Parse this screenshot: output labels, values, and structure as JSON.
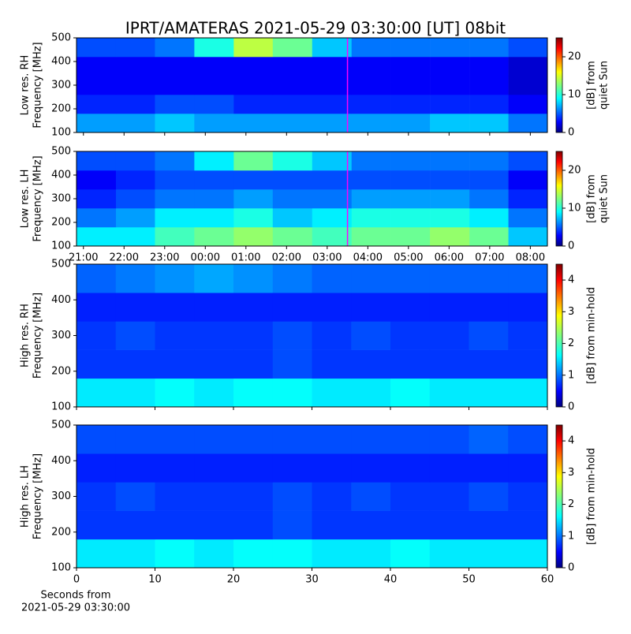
{
  "chart_data": [
    {
      "type": "heatmap",
      "title": "IPRT/AMATERAS 2021-05-29 03:30:00 [UT]   08bit",
      "ylabel": [
        "Low res. RH",
        "Frequency [MHz]"
      ],
      "ylim": [
        100,
        500
      ],
      "yticks": [
        100,
        200,
        300,
        400,
        500
      ],
      "xlim": [
        20.83,
        32.42
      ],
      "xticks": [
        {
          "value": 21,
          "label": "21:00"
        },
        {
          "value": 22,
          "label": "22:00"
        },
        {
          "value": 23,
          "label": "23:00"
        },
        {
          "value": 24,
          "label": "00:00"
        },
        {
          "value": 25,
          "label": "01:00"
        },
        {
          "value": 26,
          "label": "02:00"
        },
        {
          "value": 27,
          "label": "03:00"
        },
        {
          "value": 28,
          "label": "04:00"
        },
        {
          "value": 29,
          "label": "05:00"
        },
        {
          "value": 30,
          "label": "06:00"
        },
        {
          "value": 31,
          "label": "07:00"
        },
        {
          "value": 32,
          "label": "08:00"
        }
      ],
      "xtick_labels": false,
      "cursor_x": 27.5,
      "cursor_color": "#ff00ff",
      "x_bins": [
        20.83,
        21.8,
        22.76,
        23.73,
        24.7,
        25.66,
        26.63,
        27.6,
        28.56,
        29.53,
        30.5,
        31.46,
        32.42
      ],
      "y_bins": [
        100,
        180,
        260,
        340,
        420,
        500
      ],
      "z": [
        [
          7,
          7,
          8,
          7,
          7,
          7,
          7,
          7,
          7,
          8,
          8,
          6
        ],
        [
          4,
          4,
          5,
          5,
          4,
          4,
          4,
          4,
          4,
          4,
          4,
          3
        ],
        [
          3,
          3,
          3,
          3,
          3,
          3,
          3,
          3,
          3,
          3,
          3,
          2
        ],
        [
          3,
          3,
          3,
          3,
          3,
          3,
          3,
          3,
          3,
          3,
          3,
          2
        ],
        [
          5,
          5,
          6,
          10,
          14,
          12,
          8,
          6,
          6,
          6,
          6,
          5
        ]
      ],
      "colorbar": {
        "label": [
          "[dB] from",
          "quiet Sun"
        ],
        "lim": [
          0,
          25
        ],
        "ticks": [
          0,
          10,
          20
        ]
      }
    },
    {
      "type": "heatmap",
      "ylabel": [
        "Low res. LH",
        "Frequency [MHz]"
      ],
      "ylim": [
        100,
        500
      ],
      "yticks": [
        100,
        200,
        300,
        400,
        500
      ],
      "xlim": [
        20.83,
        32.42
      ],
      "xticks": [
        {
          "value": 21,
          "label": "21:00"
        },
        {
          "value": 22,
          "label": "22:00"
        },
        {
          "value": 23,
          "label": "23:00"
        },
        {
          "value": 24,
          "label": "00:00"
        },
        {
          "value": 25,
          "label": "01:00"
        },
        {
          "value": 26,
          "label": "02:00"
        },
        {
          "value": 27,
          "label": "03:00"
        },
        {
          "value": 28,
          "label": "04:00"
        },
        {
          "value": 29,
          "label": "05:00"
        },
        {
          "value": 30,
          "label": "06:00"
        },
        {
          "value": 31,
          "label": "07:00"
        },
        {
          "value": 32,
          "label": "08:00"
        }
      ],
      "xtick_labels": true,
      "cursor_x": 27.5,
      "cursor_color": "#ff00ff",
      "x_bins": [
        20.83,
        21.8,
        22.76,
        23.73,
        24.7,
        25.66,
        26.63,
        27.6,
        28.56,
        29.53,
        30.5,
        31.46,
        32.42
      ],
      "y_bins": [
        100,
        180,
        260,
        340,
        420,
        500
      ],
      "z": [
        [
          9,
          9,
          11,
          12,
          13,
          12,
          11,
          12,
          12,
          13,
          12,
          8
        ],
        [
          6,
          7,
          9,
          9,
          10,
          8,
          9,
          10,
          10,
          10,
          9,
          6
        ],
        [
          4,
          5,
          6,
          6,
          7,
          6,
          6,
          7,
          7,
          7,
          6,
          4
        ],
        [
          3,
          4,
          5,
          5,
          5,
          5,
          5,
          5,
          5,
          5,
          5,
          3
        ],
        [
          5,
          5,
          6,
          9,
          12,
          10,
          8,
          6,
          6,
          6,
          6,
          5
        ]
      ],
      "colorbar": {
        "label": [
          "[dB] from",
          "quiet Sun"
        ],
        "lim": [
          0,
          25
        ],
        "ticks": [
          0,
          10,
          20
        ]
      }
    },
    {
      "type": "heatmap",
      "ylabel": [
        "High res. RH",
        "Frequency [MHz]"
      ],
      "ylim": [
        100,
        500
      ],
      "yticks": [
        100,
        200,
        300,
        400,
        500
      ],
      "xlim": [
        0,
        60
      ],
      "xticks": [
        0,
        10,
        20,
        30,
        40,
        50,
        60
      ],
      "xtick_labels": false,
      "x_bins": [
        0,
        5,
        10,
        15,
        20,
        25,
        30,
        35,
        40,
        45,
        50,
        55,
        60
      ],
      "y_bins": [
        100,
        180,
        260,
        340,
        420,
        500
      ],
      "z": [
        [
          1.6,
          1.6,
          1.7,
          1.6,
          1.7,
          1.7,
          1.6,
          1.6,
          1.7,
          1.6,
          1.6,
          1.6
        ],
        [
          0.8,
          0.8,
          0.8,
          0.8,
          0.8,
          0.9,
          0.8,
          0.8,
          0.8,
          0.8,
          0.8,
          0.8
        ],
        [
          0.8,
          0.9,
          0.8,
          0.8,
          0.8,
          0.9,
          0.8,
          0.9,
          0.8,
          0.8,
          0.9,
          0.8
        ],
        [
          0.7,
          0.7,
          0.7,
          0.7,
          0.7,
          0.7,
          0.7,
          0.7,
          0.7,
          0.7,
          0.7,
          0.7
        ],
        [
          1.0,
          1.1,
          1.2,
          1.3,
          1.2,
          1.1,
          1.0,
          1.0,
          1.0,
          1.0,
          1.0,
          1.0
        ]
      ],
      "colorbar": {
        "label": [
          "[dB] from min-hold"
        ],
        "lim": [
          0,
          4.5
        ],
        "ticks": [
          0,
          1,
          2,
          3,
          4
        ]
      }
    },
    {
      "type": "heatmap",
      "ylabel": [
        "High res. LH",
        "Frequency [MHz]"
      ],
      "ylim": [
        100,
        500
      ],
      "yticks": [
        100,
        200,
        300,
        400,
        500
      ],
      "xlim": [
        0,
        60
      ],
      "xticks": [
        0,
        10,
        20,
        30,
        40,
        50,
        60
      ],
      "xtick_labels": true,
      "xlabel": [
        "Seconds from",
        "2021-05-29 03:30:00"
      ],
      "x_bins": [
        0,
        5,
        10,
        15,
        20,
        25,
        30,
        35,
        40,
        45,
        50,
        55,
        60
      ],
      "y_bins": [
        100,
        180,
        260,
        340,
        420,
        500
      ],
      "z": [
        [
          1.6,
          1.6,
          1.7,
          1.6,
          1.7,
          1.7,
          1.6,
          1.6,
          1.7,
          1.6,
          1.6,
          1.6
        ],
        [
          0.8,
          0.8,
          0.8,
          0.8,
          0.8,
          0.9,
          0.8,
          0.8,
          0.8,
          0.8,
          0.8,
          0.8
        ],
        [
          0.8,
          0.9,
          0.8,
          0.8,
          0.8,
          0.9,
          0.8,
          0.9,
          0.8,
          0.8,
          0.9,
          0.8
        ],
        [
          0.7,
          0.7,
          0.7,
          0.7,
          0.7,
          0.7,
          0.7,
          0.7,
          0.7,
          0.7,
          0.7,
          0.7
        ],
        [
          0.9,
          0.9,
          0.9,
          0.9,
          0.9,
          0.9,
          0.9,
          0.9,
          0.9,
          0.9,
          1.0,
          0.9
        ]
      ],
      "colorbar": {
        "label": [
          "[dB] from min-hold"
        ],
        "lim": [
          0,
          4.5
        ],
        "ticks": [
          0,
          1,
          2,
          3,
          4
        ]
      }
    }
  ]
}
